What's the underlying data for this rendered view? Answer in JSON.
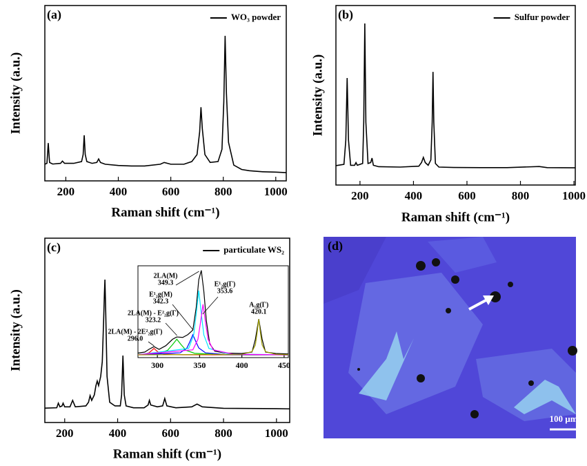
{
  "chart_data": [
    {
      "type": "line",
      "label": "(a)",
      "xlabel": "Raman shift (cm⁻¹)",
      "ylabel": "Intensity (a.u.)",
      "legend_position": "upper right",
      "xlim": [
        120,
        1040
      ],
      "ylim": [
        0,
        100
      ],
      "xticks": [
        200,
        400,
        600,
        800,
        1000
      ],
      "x": [
        120,
        128,
        133,
        138,
        150,
        180,
        187,
        195,
        230,
        260,
        266,
        270,
        274,
        280,
        300,
        318,
        325,
        332,
        350,
        400,
        450,
        500,
        560,
        575,
        600,
        650,
        680,
        700,
        710,
        715,
        720,
        730,
        750,
        780,
        795,
        802,
        807,
        812,
        820,
        840,
        870,
        900,
        950,
        1000,
        1040
      ],
      "series": [
        {
          "name": "WO₃ powder",
          "color": "#000000",
          "values": [
            9.5,
            10,
            21.6,
            10.5,
            9.6,
            10,
            11.3,
            10,
            10,
            11,
            15,
            26,
            15,
            11,
            10,
            10.5,
            12.5,
            10.5,
            9.5,
            8.8,
            8.5,
            8.5,
            9.5,
            10.5,
            9.5,
            9.5,
            11,
            15,
            28,
            42,
            30,
            15,
            10.5,
            11,
            18,
            45,
            82.7,
            50,
            22,
            9,
            6.5,
            5.8,
            5.2,
            5,
            4.7
          ]
        }
      ]
    },
    {
      "type": "line",
      "label": "(b)",
      "xlabel": "Raman shift (cm⁻¹)",
      "ylabel": "Intensity (a.u.)",
      "legend_position": "upper right",
      "xlim": [
        110,
        1005
      ],
      "ylim": [
        0,
        100
      ],
      "xticks": [
        200,
        400,
        600,
        800,
        1000
      ],
      "x": [
        110,
        140,
        147,
        152,
        157,
        165,
        180,
        185,
        190,
        210,
        214,
        218,
        222,
        230,
        240,
        245,
        250,
        270,
        350,
        420,
        430,
        437,
        444,
        455,
        465,
        470,
        473,
        476,
        482,
        495,
        550,
        650,
        750,
        870,
        900,
        1005
      ],
      "series": [
        {
          "name": "Sulfur powder",
          "color": "#000000",
          "values": [
            10.8,
            11.5,
            25,
            59.6,
            25,
            11,
            11,
            12.5,
            11,
            12,
            35,
            90,
            35,
            12,
            12.5,
            15,
            11,
            10.2,
            10,
            10.5,
            12.5,
            15.4,
            12.5,
            11,
            14,
            35,
            63,
            35,
            12,
            10,
            9.8,
            9.7,
            9.7,
            10.3,
            9.7,
            9.6
          ]
        }
      ]
    },
    {
      "type": "line",
      "label": "(c)",
      "xlabel": "Raman shift (cm⁻¹)",
      "ylabel": "Intensity (a.u.)",
      "legend_position": "upper right",
      "xlim": [
        125,
        1050
      ],
      "ylim": [
        0,
        100
      ],
      "xticks": [
        200,
        400,
        600,
        800,
        1000
      ],
      "x": [
        125,
        170,
        176,
        182,
        190,
        194,
        200,
        220,
        230,
        240,
        280,
        290,
        296,
        302,
        312,
        318,
        323,
        328,
        336,
        342,
        347,
        350,
        352,
        355,
        360,
        370,
        390,
        410,
        415,
        420,
        425,
        432,
        460,
        500,
        515,
        520,
        525,
        550,
        570,
        578,
        586,
        620,
        680,
        700,
        720,
        800,
        900,
        1000,
        1050
      ],
      "series": [
        {
          "name": "particulate WS₂",
          "color": "#000000",
          "values": [
            7.8,
            8,
            10.5,
            8.5,
            9,
            10.5,
            8.5,
            8.5,
            12,
            8.5,
            9,
            11,
            14.6,
            12,
            15,
            20,
            22.5,
            20,
            25,
            33,
            55,
            70,
            77.5,
            60,
            25,
            11,
            9,
            9,
            15,
            36.3,
            15,
            9,
            8,
            8,
            9.5,
            12,
            9.5,
            8.5,
            9,
            13,
            9,
            8,
            8.5,
            10,
            8.5,
            7.7,
            7.6,
            7.5,
            7.4
          ]
        }
      ]
    },
    {
      "type": "line",
      "xlim": [
        277,
        455
      ],
      "ylim": [
        0,
        100
      ],
      "xticks": [
        300,
        350,
        400,
        450
      ],
      "series": [
        {
          "color": "#000000",
          "x": [
            277,
            285,
            290,
            296,
            302,
            310,
            318,
            323,
            330,
            336,
            342,
            346,
            349,
            352,
            355,
            358,
            362,
            368,
            380,
            400,
            412,
            416,
            420,
            424,
            428,
            440,
            455
          ],
          "values": [
            5,
            6,
            9,
            12,
            9,
            13,
            20,
            22.5,
            22,
            25,
            30,
            55,
            85,
            95,
            72,
            40,
            15,
            7,
            5,
            4.5,
            6,
            20,
            42,
            20,
            6,
            4.5,
            4
          ]
        },
        {
          "color": "#ff0000",
          "x": [
            277,
            284,
            290,
            293,
            296,
            299,
            302,
            308,
            330,
            455
          ],
          "values": [
            3.3,
            3.7,
            5.2,
            7.5,
            10,
            7.5,
            5.2,
            3.7,
            3.1,
            3
          ]
        },
        {
          "color": "#00cc00",
          "x": [
            277,
            302,
            312,
            318,
            323,
            328,
            334,
            344,
            370,
            455
          ],
          "values": [
            3.4,
            4.7,
            7.9,
            14.2,
            20,
            14.2,
            7.9,
            4.7,
            3.4,
            3
          ]
        },
        {
          "color": "#0000ff",
          "x": [
            277,
            327,
            335,
            338,
            342,
            346,
            349,
            357,
            380,
            455
          ],
          "values": [
            3.1,
            5.2,
            10.5,
            16.4,
            25,
            16.4,
            10.5,
            5.2,
            3.4,
            3
          ]
        },
        {
          "color": "#00e5ff",
          "x": [
            277,
            337,
            343,
            346,
            349,
            352,
            355,
            361,
            385,
            455
          ],
          "values": [
            3.2,
            10,
            24.7,
            47.8,
            73,
            47.8,
            24.7,
            10,
            3.9,
            3
          ]
        },
        {
          "color": "#ff00ff",
          "x": [
            277,
            342,
            348,
            351,
            354,
            357,
            360,
            366,
            390,
            455
          ],
          "values": [
            3.2,
            8.5,
            20,
            38,
            58,
            38,
            20,
            8.5,
            3.7,
            3
          ]
        },
        {
          "color": "#999900",
          "x": [
            277,
            400,
            412,
            416,
            418,
            420,
            422,
            424,
            428,
            440,
            455
          ],
          "values": [
            3,
            3.6,
            6.5,
            13.9,
            26.8,
            42,
            26.8,
            13.9,
            6.5,
            3.6,
            3.2
          ]
        }
      ],
      "annotations": [
        {
          "text": "2LA(M)",
          "value": 349.3,
          "label": "349.3"
        },
        {
          "text": "E¹₂g(M)",
          "value": 342.3,
          "label": "342.3"
        },
        {
          "text": "2LA(M) - E²₂g(Γ)",
          "value": 323.2,
          "label": "323.2"
        },
        {
          "text": "2LA(M) - 2E²₂g(Γ)",
          "value": 296.0,
          "label": "296.0"
        },
        {
          "text": "E¹₂g(Γ)",
          "value": 353.6,
          "label": "353.6"
        },
        {
          "text": "A₁g(Γ)",
          "value": 420.1,
          "label": "420.1"
        }
      ]
    }
  ],
  "image_panel": {
    "label": "(d)",
    "scale_bar": "100 µm"
  }
}
